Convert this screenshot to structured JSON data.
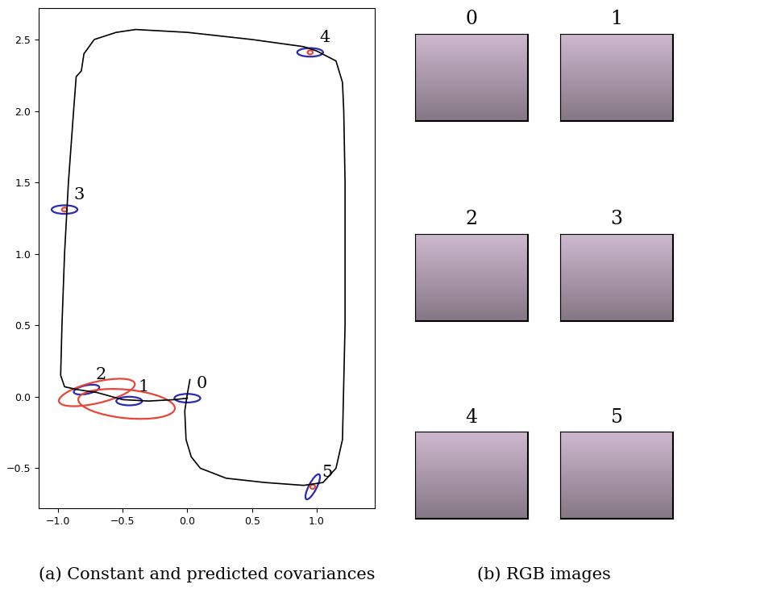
{
  "chart_data": {
    "type": "line",
    "caption": "(a) Constant and predicted covariances",
    "color": "#000000",
    "x": [
      0.02,
      0.0,
      -0.02,
      -0.01,
      0.03,
      0.1,
      0.3,
      0.6,
      0.9,
      1.05,
      1.15,
      1.2,
      1.22,
      1.22,
      1.21,
      1.2,
      1.15,
      1.0,
      0.9,
      0.5,
      0.0,
      -0.4,
      -0.55,
      -0.72,
      -0.8,
      -0.82,
      -0.86,
      -0.88,
      -0.92,
      -0.95,
      -0.97,
      -0.98,
      -0.95,
      -0.85,
      -0.7,
      -0.5,
      -0.3,
      -0.1,
      0.0
    ],
    "y": [
      0.12,
      0.02,
      -0.1,
      -0.3,
      -0.42,
      -0.5,
      -0.57,
      -0.6,
      -0.62,
      -0.6,
      -0.5,
      -0.3,
      0.5,
      1.5,
      2.0,
      2.2,
      2.35,
      2.42,
      2.45,
      2.5,
      2.55,
      2.57,
      2.55,
      2.5,
      2.4,
      2.28,
      2.24,
      2.0,
      1.5,
      1.0,
      0.5,
      0.15,
      0.07,
      0.05,
      0.03,
      -0.02,
      -0.03,
      -0.02,
      -0.01
    ],
    "xlim": [
      -1.15,
      1.45
    ],
    "ylim": [
      -0.78,
      2.72
    ],
    "xticks": [
      {
        "value": -1.0,
        "label": "−1.0"
      },
      {
        "value": -0.5,
        "label": "−0.5"
      },
      {
        "value": 0.0,
        "label": "0.0"
      },
      {
        "value": 0.5,
        "label": "0.5"
      },
      {
        "value": 1.0,
        "label": "1.0"
      }
    ],
    "yticks": [
      {
        "value": -0.5,
        "label": "−0.5"
      },
      {
        "value": 0.0,
        "label": "0.0"
      },
      {
        "value": 0.5,
        "label": "0.5"
      },
      {
        "value": 1.0,
        "label": "1.0"
      },
      {
        "value": 1.5,
        "label": "1.5"
      },
      {
        "value": 2.0,
        "label": "2.0"
      },
      {
        "value": 2.5,
        "label": "2.5"
      }
    ],
    "ellipses": [
      {
        "label": "0",
        "center": [
          0.0,
          -0.01
        ],
        "covariance": [
          [
            0.01,
            0.0
          ],
          [
            0.0,
            0.0009
          ]
        ],
        "color": "#2a2ab8"
      },
      {
        "label": "1",
        "center": [
          -0.45,
          -0.03
        ],
        "covariance": [
          [
            0.01,
            0.0
          ],
          [
            0.0,
            0.0009
          ]
        ],
        "color": "#2a2ab8"
      },
      {
        "label": "2",
        "center": [
          -0.78,
          0.05
        ],
        "covariance": [
          [
            0.00973,
            0.00156
          ],
          [
            0.00156,
            0.00117
          ]
        ],
        "color": "#2a2ab8"
      },
      {
        "label": "3",
        "center": [
          -0.95,
          1.31
        ],
        "covariance": [
          [
            0.01,
            0.0
          ],
          [
            0.0,
            0.0009
          ]
        ],
        "color": "#2a2ab8"
      },
      {
        "label": "4",
        "center": [
          0.95,
          2.41
        ],
        "covariance": [
          [
            0.01,
            0.0
          ],
          [
            0.0,
            0.0009
          ]
        ],
        "color": "#2a2ab8"
      },
      {
        "label": "5",
        "center": [
          0.97,
          -0.63
        ],
        "covariance": [
          [
            0.003175,
            0.00394
          ],
          [
            0.00394,
            0.007725
          ]
        ],
        "color": "#2a2ab8"
      },
      {
        "label": null,
        "center": [
          -0.47,
          -0.05
        ],
        "covariance": [
          [
            0.1396,
            -0.01134
          ],
          [
            -0.01134,
            0.01099
          ]
        ],
        "color": "#e8463a"
      },
      {
        "label": null,
        "center": [
          -0.7,
          0.03
        ],
        "covariance": [
          [
            0.0864,
            0.01713
          ],
          [
            0.01713,
            0.00925
          ]
        ],
        "color": "#e8463a"
      },
      {
        "label": null,
        "center": [
          -0.95,
          1.31
        ],
        "covariance": [
          [
            0.0004,
            0.0
          ],
          [
            0.0,
            0.0002
          ]
        ],
        "color": "#e8463a"
      },
      {
        "label": null,
        "center": [
          0.95,
          2.41
        ],
        "covariance": [
          [
            0.0004,
            0.0
          ],
          [
            0.0,
            0.0002
          ]
        ],
        "color": "#e8463a"
      },
      {
        "label": null,
        "center": [
          0.97,
          -0.63
        ],
        "covariance": [
          [
            0.0004,
            0.0
          ],
          [
            0.0,
            0.0002
          ]
        ],
        "color": "#e8463a"
      }
    ]
  },
  "images": {
    "caption": "(b) RGB images",
    "titles": [
      "0",
      "1",
      "2",
      "3",
      "4",
      "5"
    ]
  }
}
